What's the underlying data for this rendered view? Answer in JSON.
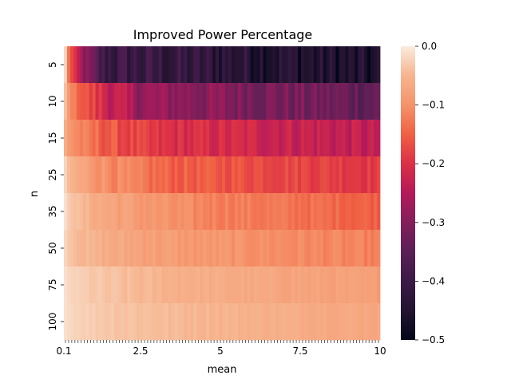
{
  "chart_data": {
    "type": "heatmap",
    "title": "Improved Power Percentage",
    "xlabel": "mean",
    "ylabel": "n",
    "rows": [
      "5",
      "10",
      "15",
      "25",
      "35",
      "50",
      "75",
      "100"
    ],
    "x_ticks": [
      "0.1",
      "2.5",
      "5",
      "7.5",
      "10"
    ],
    "x_tick_values": [
      0.1,
      2.5,
      5,
      7.5,
      10
    ],
    "x_range": [
      0.1,
      10
    ],
    "n_columns": 100,
    "colorbar": {
      "range": [
        -0.5,
        0.0
      ],
      "ticks": [
        "0.0",
        "−0.1",
        "−0.2",
        "−0.3",
        "−0.4",
        "−0.5"
      ],
      "tick_values": [
        0.0,
        -0.1,
        -0.2,
        -0.3,
        -0.4,
        -0.5
      ]
    },
    "row_profiles": [
      {
        "n": "5",
        "start": -0.02,
        "ramp_end_mean": 1.3,
        "plateau": -0.4,
        "end": -0.47
      },
      {
        "n": "10",
        "start": -0.04,
        "ramp_end_mean": 2.5,
        "plateau": -0.28,
        "end": -0.34
      },
      {
        "n": "15",
        "start": -0.06,
        "ramp_end_mean": 3.0,
        "plateau": -0.2,
        "end": -0.24
      },
      {
        "n": "25",
        "start": -0.02,
        "ramp_end_mean": 3.5,
        "plateau": -0.15,
        "end": -0.19
      },
      {
        "n": "35",
        "start": -0.01,
        "ramp_end_mean": 4.0,
        "plateau": -0.11,
        "end": -0.15
      },
      {
        "n": "50",
        "start": -0.02,
        "ramp_end_mean": 4.0,
        "plateau": -0.09,
        "end": -0.12
      },
      {
        "n": "75",
        "start": -0.01,
        "ramp_end_mean": 4.5,
        "plateau": -0.06,
        "end": -0.085
      },
      {
        "n": "100",
        "start": -0.01,
        "ramp_end_mean": 5.0,
        "plateau": -0.05,
        "end": -0.07
      }
    ],
    "colormap": "rocket",
    "grid": false
  }
}
